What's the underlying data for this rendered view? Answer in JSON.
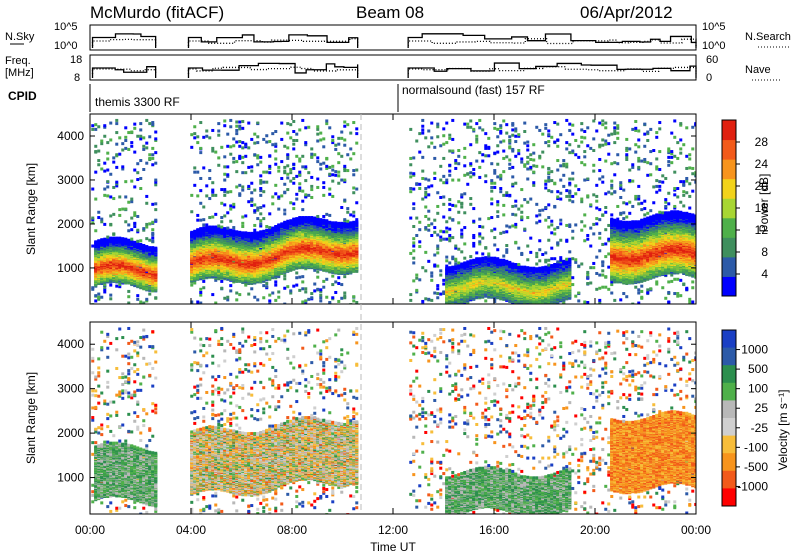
{
  "header": {
    "station": "McMurdo (fitACF)",
    "beam": "Beam 08",
    "date": "06/Apr/2012"
  },
  "strips": {
    "nsky_label": "N.Sky",
    "nsky_ticks": [
      "10^5",
      "10^0"
    ],
    "nsearch_label": "N.Search",
    "nsearch_ticks": [
      "10^5",
      "10^0"
    ],
    "freq_label_1": "Freq.",
    "freq_label_2": "[MHz]",
    "freq_ticks": [
      "18",
      "8"
    ],
    "nave_label": "Nave",
    "nave_ticks": [
      "60",
      "0"
    ],
    "cpid_label": "CPID",
    "cpid_segments": [
      {
        "label": "themis 3300 RF",
        "start": 0.0,
        "end": 12.0
      },
      {
        "label": "normalsound (fast) 157 RF",
        "start": 12.0,
        "end": 24.0
      }
    ]
  },
  "colors": {
    "power": [
      "#0000ff",
      "#2c5aa8",
      "#3f8f5e",
      "#4fb04a",
      "#a8d633",
      "#f2d31b",
      "#f7941d",
      "#f25a1a",
      "#e02010"
    ],
    "velocity": [
      "#ff0000",
      "#f25a1a",
      "#f7941d",
      "#f7bd3a",
      "#cfcfcf",
      "#b8b8b8",
      "#4fb04a",
      "#2c8f4e",
      "#2c5aa8",
      "#1a3fc4"
    ]
  },
  "chart_data": [
    {
      "type": "heatmap",
      "title": "",
      "xlabel": "",
      "ylabel": "Slant Range [km]",
      "xlim": [
        0,
        24
      ],
      "ylim": [
        180,
        4500
      ],
      "y_ticks": [
        "1000",
        "2000",
        "3000",
        "4000"
      ],
      "colorbar_label": "Power [dB]",
      "colorbar_ticks": [
        "4",
        "8",
        "12",
        "16",
        "20",
        "24",
        "28"
      ],
      "colorbar_range": [
        0,
        32
      ],
      "data_gaps_ut": [
        [
          2.6,
          3.9
        ],
        [
          10.6,
          12.6
        ]
      ],
      "bands": [
        {
          "t0": 0.1,
          "t1": 2.6,
          "r0": 600,
          "r1": 1600,
          "level": "strong"
        },
        {
          "t0": 3.9,
          "t1": 10.6,
          "r0": 650,
          "r1": 1800,
          "level": "strong"
        },
        {
          "t0": 14.0,
          "t1": 19.0,
          "r0": 250,
          "r1": 1150,
          "level": "medium"
        },
        {
          "t0": 20.5,
          "t1": 24.0,
          "r0": 800,
          "r1": 2200,
          "level": "strong"
        }
      ]
    },
    {
      "type": "heatmap",
      "title": "",
      "xlabel": "Time UT",
      "ylabel": "Slant Range [km]",
      "xlim": [
        0,
        24
      ],
      "ylim": [
        180,
        4500
      ],
      "x_ticks": [
        "00:00",
        "04:00",
        "08:00",
        "12:00",
        "16:00",
        "20:00",
        "00:00"
      ],
      "y_ticks": [
        "1000",
        "2000",
        "3000",
        "4000"
      ],
      "colorbar_label": "Velocity [m s⁻¹]",
      "colorbar_ticks": [
        "1000",
        "500",
        "100",
        "25",
        "-25",
        "-100",
        "-500",
        "-1000"
      ],
      "data_gaps_ut": [
        [
          2.6,
          3.9
        ],
        [
          10.6,
          12.6
        ]
      ],
      "bands": [
        {
          "t0": 0.1,
          "t1": 2.6,
          "r0": 500,
          "r1": 1700,
          "velocity": "positive"
        },
        {
          "t0": 3.9,
          "t1": 10.6,
          "r0": 600,
          "r1": 2000,
          "velocity": "mixed"
        },
        {
          "t0": 14.0,
          "t1": 19.0,
          "r0": 250,
          "r1": 1150,
          "velocity": "positive"
        },
        {
          "t0": 20.5,
          "t1": 24.0,
          "r0": 800,
          "r1": 2400,
          "velocity": "negative"
        }
      ]
    }
  ]
}
